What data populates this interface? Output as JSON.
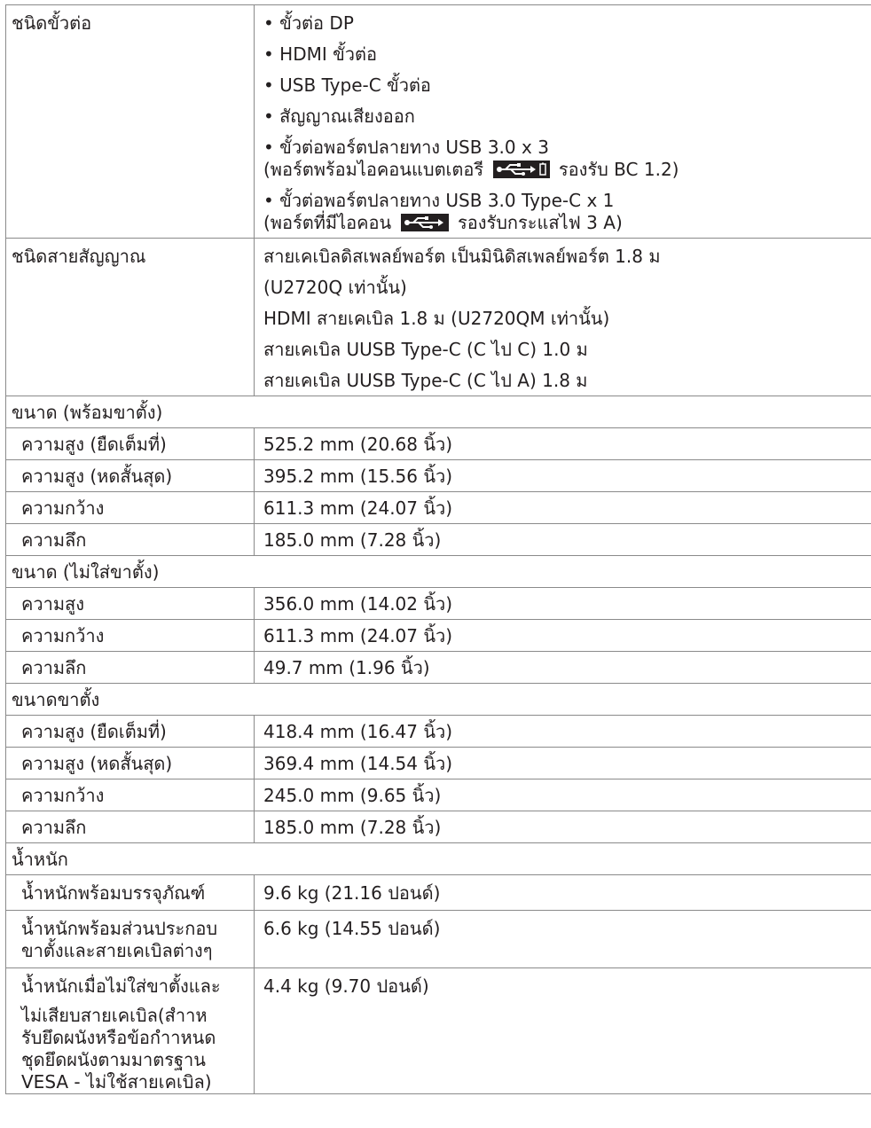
{
  "connectors": {
    "label": "ชนิดขั้วต่อ",
    "item1": "• ขั้วต่อ DP",
    "item2": "• HDMI ขั้วต่อ",
    "item3": "• USB Type-C ขั้วต่อ",
    "item4": "• สัญญาณเสียงออก",
    "item5_line1": "• ขั้วต่อพอร์ตปลายทาง USB 3.0 x 3",
    "item5_line2_before": "(พอร์ตพร้อมไอคอนแบตเตอรี",
    "item5_icon": "usb-battery-icon",
    "item5_line2_after": "รองรับ BC 1.2)",
    "item6_line1": "• ขั้วต่อพอร์ตปลายทาง USB 3.0 Type-C x 1",
    "item6_line2_before": "(พอร์ตที่มีไอคอน",
    "item6_icon": "usb-icon",
    "item6_line2_after": "รองรับกระแสไฟ 3 A)"
  },
  "cables": {
    "label": "ชนิดสายสัญญาณ",
    "line1": "สายเคเบิลดิสเพลย์พอร์ต เป็นมินิดิสเพลย์พอร์ต 1.8 ม",
    "line2": "(U2720Q เท่านั้น)",
    "line3": "HDMI สายเคเบิล 1.8 ม (U2720QM เท่านั้น)",
    "line4": "สายเคเบิล UUSB Type-C (C ไป C) 1.0 ม",
    "line5": "สายเคเบิล UUSB Type-C (C ไป A) 1.8 ม"
  },
  "dims_with_stand": {
    "heading": "ขนาด (พร้อมขาตั้ง)",
    "rows": [
      {
        "label": "ความสูง (ยืดเต็มที่)",
        "value": "525.2 mm (20.68 นิ้ว)"
      },
      {
        "label": "ความสูง (หดสั้นสุด)",
        "value": "395.2 mm (15.56 นิ้ว)"
      },
      {
        "label": "ความกว้าง",
        "value": "611.3 mm (24.07 นิ้ว)"
      },
      {
        "label": "ความลึก",
        "value": "185.0 mm (7.28 นิ้ว)"
      }
    ]
  },
  "dims_without_stand": {
    "heading": "ขนาด (ไม่ใส่ขาตั้ง)",
    "rows": [
      {
        "label": "ความสูง",
        "value": "356.0 mm (14.02 นิ้ว)"
      },
      {
        "label": "ความกว้าง",
        "value": "611.3 mm (24.07 นิ้ว)"
      },
      {
        "label": "ความลึก",
        "value": "49.7 mm (1.96 นิ้ว)"
      }
    ]
  },
  "stand_dims": {
    "heading": "ขนาดขาตั้ง",
    "rows": [
      {
        "label": "ความสูง (ยืดเต็มที่)",
        "value": "418.4 mm (16.47 นิ้ว)"
      },
      {
        "label": "ความสูง (หดสั้นสุด)",
        "value": "369.4 mm (14.54 นิ้ว)"
      },
      {
        "label": "ความกว้าง",
        "value": "245.0 mm (9.65 นิ้ว)"
      },
      {
        "label": "ความลึก",
        "value": "185.0 mm (7.28 นิ้ว)"
      }
    ]
  },
  "weight": {
    "heading": "น้ำหนัก",
    "row1": {
      "label": "น้ำหนักพร้อมบรรจุภัณฑ์",
      "value": "9.6 kg (21.16 ปอนด์)"
    },
    "row2": {
      "label_line1": "น้ำหนักพร้อมส่วนประกอบ",
      "label_line2": "ขาตั้งและสายเคเบิลต่างๆ",
      "value": "6.6 kg (14.55 ปอนด์)"
    },
    "row3": {
      "label_line1": "น้ำหนักเมื่อไม่ใส่ขาตั้งและ",
      "label_line2": "ไม่เสียบสายเคเบิล(สำาห",
      "label_line3": "รับยึดผนังหรือข้อกำาหนด",
      "label_line4": "ชุดยึดผนังตามมาตรฐาน",
      "label_line5": "VESA - ไม่ใช้สายเคเบิล)",
      "value": "4.4 kg (9.70 ปอนด์)"
    }
  }
}
